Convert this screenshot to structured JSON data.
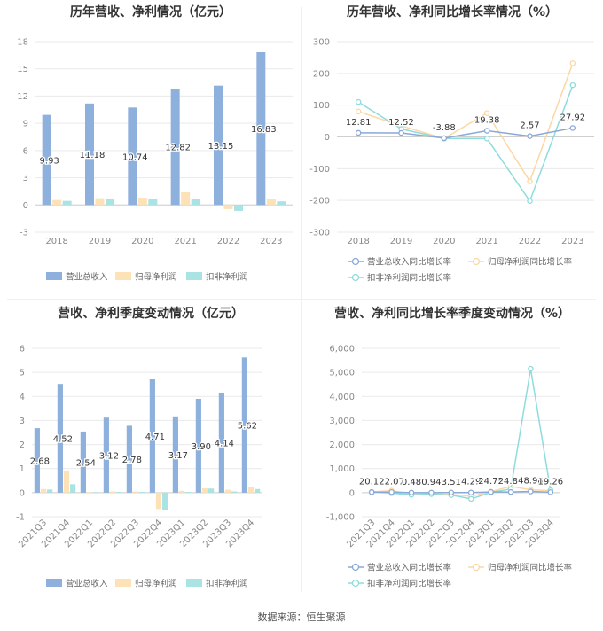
{
  "source": {
    "label": "数据来源：",
    "name": "恒生聚源"
  },
  "colors": {
    "revenue": "#8eb0dc",
    "net_profit": "#fde2b8",
    "deducted_profit": "#a9e3e3",
    "line_revenue": "#8aa9d8",
    "line_net": "#fcd7a4",
    "line_deducted": "#8fdcdc",
    "grid": "#e9e9e9",
    "axis_text": "#888888",
    "title_text": "#333333"
  },
  "chart_data": [
    {
      "type": "bar",
      "title": "历年营收、净利情况（亿元）",
      "categories": [
        "2018",
        "2019",
        "2020",
        "2021",
        "2022",
        "2023"
      ],
      "series": [
        {
          "name": "营业总收入",
          "values": [
            9.93,
            11.18,
            10.74,
            12.82,
            13.15,
            16.83
          ],
          "labels": [
            "9.93",
            "11.18",
            "10.74",
            "12.82",
            "13.15",
            "16.83"
          ]
        },
        {
          "name": "归母净利润",
          "values": [
            0.55,
            0.75,
            0.8,
            1.4,
            -0.45,
            0.7
          ]
        },
        {
          "name": "扣非净利润",
          "values": [
            0.45,
            0.62,
            0.65,
            0.65,
            -0.65,
            0.4
          ]
        }
      ],
      "yticks": [
        "18",
        "15",
        "12",
        "9",
        "6",
        "3",
        "0",
        "-3"
      ],
      "ylim": [
        -3,
        18
      ],
      "grid": true,
      "legend": "bottom"
    },
    {
      "type": "line",
      "title": "历年营收、净利同比增长率情况（%）",
      "categories": [
        "2018",
        "2019",
        "2020",
        "2021",
        "2022",
        "2023"
      ],
      "series": [
        {
          "name": "营业总收入同比增长率",
          "values": [
            12.81,
            12.52,
            -3.88,
            19.38,
            2.57,
            27.92
          ],
          "labels": [
            "12.81",
            "12.52",
            "-3.88",
            "19.38",
            "2.57",
            "27.92"
          ]
        },
        {
          "name": "归母净利润同比增长率",
          "values": [
            80,
            35,
            -5,
            75,
            -140,
            232
          ]
        },
        {
          "name": "扣非净利润同比增长率",
          "values": [
            110,
            25,
            -5,
            -5,
            -202,
            163
          ]
        }
      ],
      "yticks": [
        "300",
        "200",
        "100",
        "0",
        "-100",
        "-200",
        "-300"
      ],
      "ylim": [
        -300,
        300
      ],
      "grid": true,
      "legend": "bottom"
    },
    {
      "type": "bar",
      "title": "营收、净利季度变动情况（亿元）",
      "categories": [
        "2021Q3",
        "2021Q4",
        "2022Q1",
        "2022Q2",
        "2022Q3",
        "2022Q4",
        "2023Q1",
        "2023Q2",
        "2023Q3",
        "2023Q4"
      ],
      "series": [
        {
          "name": "营业总收入",
          "values": [
            2.68,
            4.52,
            2.54,
            3.12,
            2.78,
            4.71,
            3.17,
            3.9,
            4.14,
            5.62
          ],
          "labels": [
            "2.68",
            "4.52",
            "2.54",
            "3.12",
            "2.78",
            "4.71",
            "3.17",
            "3.90",
            "4.14",
            "5.62"
          ]
        },
        {
          "name": "归母净利润",
          "values": [
            0.15,
            0.92,
            0.03,
            0.05,
            0.05,
            -0.68,
            0.08,
            0.18,
            0.12,
            0.25
          ]
        },
        {
          "name": "扣非净利润",
          "values": [
            0.13,
            0.35,
            0.02,
            0.03,
            0.03,
            -0.72,
            0.03,
            0.17,
            0.05,
            0.15
          ]
        }
      ],
      "yticks": [
        "6",
        "5",
        "4",
        "3",
        "2",
        "1",
        "0",
        "-1"
      ],
      "ylim": [
        -1,
        6
      ],
      "grid": true,
      "legend": "bottom"
    },
    {
      "type": "line",
      "title": "营收、净利同比增长率季度变动情况（%）",
      "categories": [
        "2021Q3",
        "2021Q4",
        "2022Q1",
        "2022Q2",
        "2022Q3",
        "2022Q4",
        "2023Q1",
        "2023Q2",
        "2023Q3",
        "2023Q4"
      ],
      "series": [
        {
          "name": "营业总收入同比增长率",
          "values": [
            20.17,
            22.07,
            0.48,
            0.94,
            3.51,
            4.29,
            24.75,
            24.84,
            48.98,
            19.26
          ],
          "labels": [
            "20.17",
            "22.07",
            "0.48",
            "0.94",
            "3.51",
            "4.29",
            "24.75",
            "24.84",
            "48.98",
            "19.26"
          ]
        },
        {
          "name": "归母净利润同比增长率",
          "values": [
            30,
            80,
            -60,
            -40,
            -80,
            -150,
            40,
            260,
            120,
            80
          ]
        },
        {
          "name": "扣非净利润同比增长率",
          "values": [
            20,
            -20,
            -90,
            -60,
            -100,
            -260,
            10,
            150,
            5150,
            100
          ]
        }
      ],
      "yticks": [
        "6,000",
        "5,000",
        "4,000",
        "3,000",
        "2,000",
        "1,000",
        "0",
        "-1,000"
      ],
      "ylim": [
        -1000,
        6000
      ],
      "grid": true,
      "legend": "bottom"
    }
  ]
}
